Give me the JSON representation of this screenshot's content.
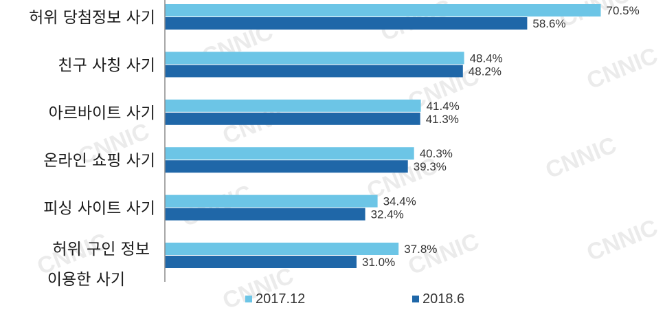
{
  "chart_data": {
    "type": "bar",
    "orientation": "horizontal",
    "categories": [
      [
        "허위 당첨정보 사기"
      ],
      [
        "친구 사칭 사기"
      ],
      [
        "아르바이트 사기"
      ],
      [
        "온라인 쇼핑 사기"
      ],
      [
        "피싱 사이트 사기"
      ],
      [
        "허위 구인 정보",
        "이용한 사기"
      ]
    ],
    "series": [
      {
        "name": "2017.12",
        "color": "#6cc5e6",
        "values": [
          70.5,
          48.4,
          41.4,
          40.3,
          34.4,
          37.8
        ],
        "labels": [
          "70.5%",
          "48.4%",
          "41.4%",
          "40.3%",
          "34.4%",
          "37.8%"
        ]
      },
      {
        "name": "2018.6",
        "color": "#1f67a8",
        "values": [
          58.6,
          48.2,
          41.3,
          39.3,
          32.4,
          31.0
        ],
        "labels": [
          "58.6%",
          "48.2%",
          "41.3%",
          "39.3%",
          "32.4%",
          "31.0%"
        ]
      }
    ],
    "xlim": [
      0,
      80
    ],
    "grid": false,
    "legend_position": "bottom-center",
    "watermark": "CNNIC"
  }
}
